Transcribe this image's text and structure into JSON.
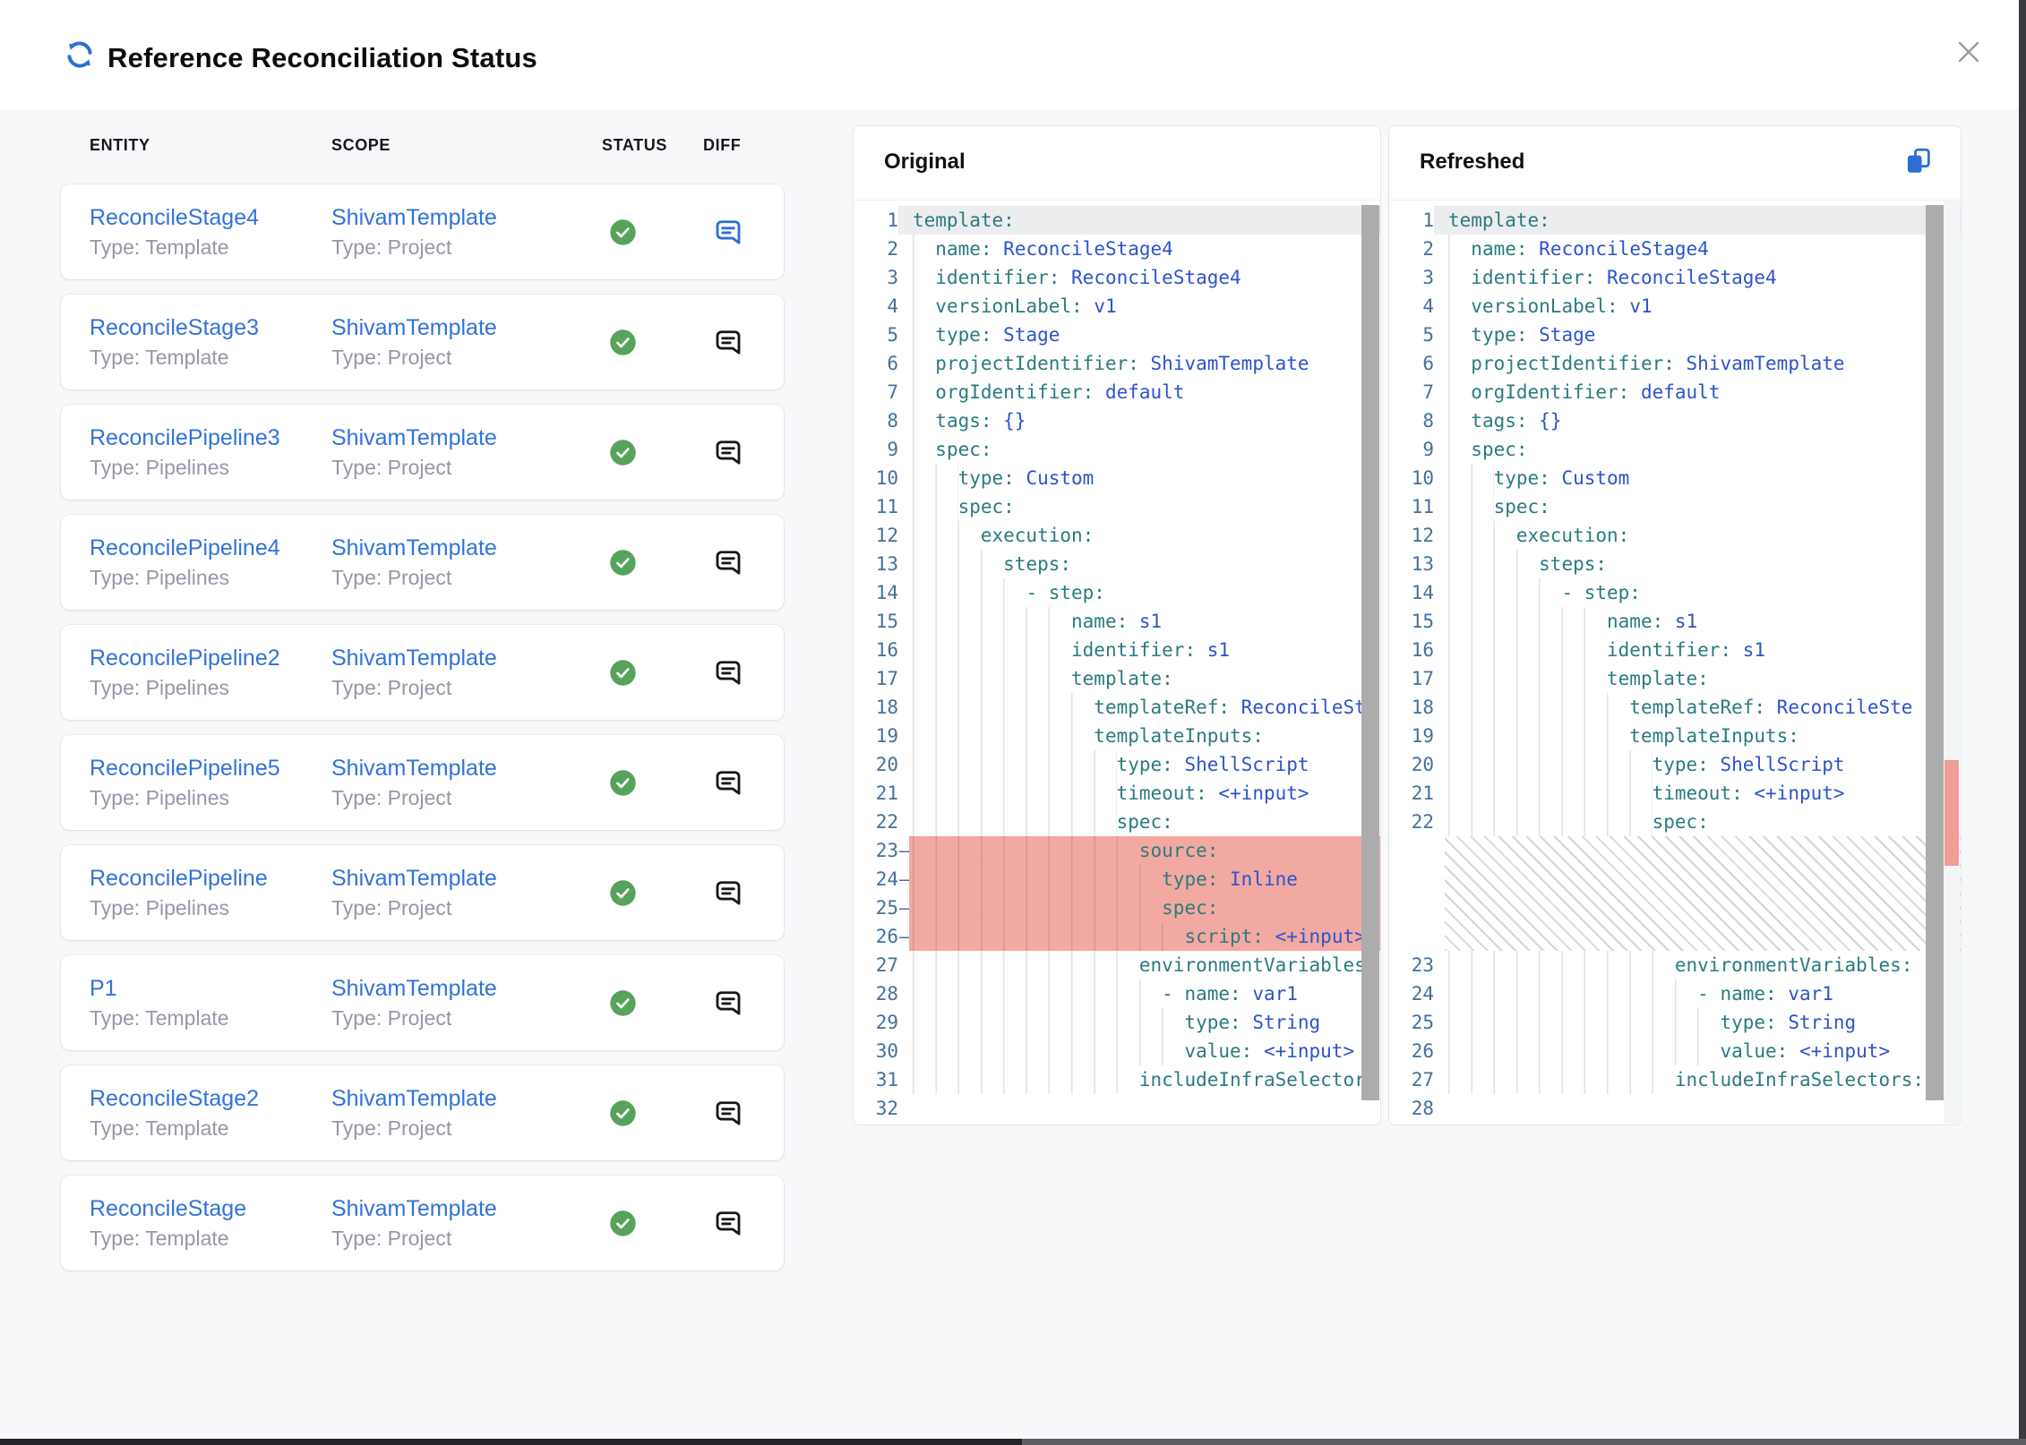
{
  "header": {
    "title": "Reference Reconciliation Status",
    "refresh_icon": "refresh-icon",
    "close_icon": "close-icon"
  },
  "colors": {
    "accent_blue": "#2B6FD4",
    "link_blue": "#3173D8",
    "success_green": "#56A35C",
    "key_teal": "#2A7B7E",
    "value_blue": "#2D53CB",
    "line_number_blue": "#44709D",
    "deleted_line_bg": "#F2A9A1",
    "ruler_marker": "#EF9E95"
  },
  "table": {
    "columns": [
      "ENTITY",
      "SCOPE",
      "STATUS",
      "DIFF"
    ],
    "rows": [
      {
        "entity": "ReconcileStage4",
        "entity_type": "Type: Template",
        "scope": "ShivamTemplate",
        "scope_type": "Type: Project",
        "status": "success",
        "diff_active": true
      },
      {
        "entity": "ReconcileStage3",
        "entity_type": "Type: Template",
        "scope": "ShivamTemplate",
        "scope_type": "Type: Project",
        "status": "success",
        "diff_active": false
      },
      {
        "entity": "ReconcilePipeline3",
        "entity_type": "Type: Pipelines",
        "scope": "ShivamTemplate",
        "scope_type": "Type: Project",
        "status": "success",
        "diff_active": false
      },
      {
        "entity": "ReconcilePipeline4",
        "entity_type": "Type: Pipelines",
        "scope": "ShivamTemplate",
        "scope_type": "Type: Project",
        "status": "success",
        "diff_active": false
      },
      {
        "entity": "ReconcilePipeline2",
        "entity_type": "Type: Pipelines",
        "scope": "ShivamTemplate",
        "scope_type": "Type: Project",
        "status": "success",
        "diff_active": false
      },
      {
        "entity": "ReconcilePipeline5",
        "entity_type": "Type: Pipelines",
        "scope": "ShivamTemplate",
        "scope_type": "Type: Project",
        "status": "success",
        "diff_active": false
      },
      {
        "entity": "ReconcilePipeline",
        "entity_type": "Type: Pipelines",
        "scope": "ShivamTemplate",
        "scope_type": "Type: Project",
        "status": "success",
        "diff_active": false
      },
      {
        "entity": "P1",
        "entity_type": "Type: Template",
        "scope": "ShivamTemplate",
        "scope_type": "Type: Project",
        "status": "success",
        "diff_active": false
      },
      {
        "entity": "ReconcileStage2",
        "entity_type": "Type: Template",
        "scope": "ShivamTemplate",
        "scope_type": "Type: Project",
        "status": "success",
        "diff_active": false
      },
      {
        "entity": "ReconcileStage",
        "entity_type": "Type: Template",
        "scope": "ShivamTemplate",
        "scope_type": "Type: Project",
        "status": "success",
        "diff_active": false
      }
    ]
  },
  "diff": {
    "deleted_marker": "–",
    "original": {
      "title": "Original",
      "lines": [
        {
          "n": 1,
          "indent": 0,
          "k": "template",
          "hl": true
        },
        {
          "n": 2,
          "indent": 2,
          "k": "name",
          "v": "ReconcileStage4"
        },
        {
          "n": 3,
          "indent": 2,
          "k": "identifier",
          "v": "ReconcileStage4"
        },
        {
          "n": 4,
          "indent": 2,
          "k": "versionLabel",
          "v": "v1"
        },
        {
          "n": 5,
          "indent": 2,
          "k": "type",
          "v": "Stage"
        },
        {
          "n": 6,
          "indent": 2,
          "k": "projectIdentifier",
          "v": "ShivamTemplate"
        },
        {
          "n": 7,
          "indent": 2,
          "k": "orgIdentifier",
          "v": "default"
        },
        {
          "n": 8,
          "indent": 2,
          "k": "tags",
          "v": "{}"
        },
        {
          "n": 9,
          "indent": 2,
          "k": "spec"
        },
        {
          "n": 10,
          "indent": 4,
          "k": "type",
          "v": "Custom"
        },
        {
          "n": 11,
          "indent": 4,
          "k": "spec"
        },
        {
          "n": 12,
          "indent": 6,
          "k": "execution"
        },
        {
          "n": 13,
          "indent": 8,
          "k": "steps"
        },
        {
          "n": 14,
          "indent": 10,
          "k": "- step"
        },
        {
          "n": 15,
          "indent": 14,
          "k": "name",
          "v": "s1"
        },
        {
          "n": 16,
          "indent": 14,
          "k": "identifier",
          "v": "s1"
        },
        {
          "n": 17,
          "indent": 14,
          "k": "template"
        },
        {
          "n": 18,
          "indent": 16,
          "k": "templateRef",
          "v": "ReconcileSte"
        },
        {
          "n": 19,
          "indent": 16,
          "k": "templateInputs"
        },
        {
          "n": 20,
          "indent": 18,
          "k": "type",
          "v": "ShellScript"
        },
        {
          "n": 21,
          "indent": 18,
          "k": "timeout",
          "v": "<+input>"
        },
        {
          "n": 22,
          "indent": 18,
          "k": "spec"
        },
        {
          "n": 23,
          "indent": 20,
          "k": "source",
          "deleted": true
        },
        {
          "n": 24,
          "indent": 22,
          "k": "type",
          "v": "Inline",
          "deleted": true
        },
        {
          "n": 25,
          "indent": 22,
          "k": "spec",
          "deleted": true
        },
        {
          "n": 26,
          "indent": 24,
          "k": "script",
          "v": "<+input>",
          "deleted": true
        },
        {
          "n": 27,
          "indent": 20,
          "k": "environmentVariables"
        },
        {
          "n": 28,
          "indent": 22,
          "k": "- name",
          "v": "var1"
        },
        {
          "n": 29,
          "indent": 24,
          "k": "type",
          "v": "String"
        },
        {
          "n": 30,
          "indent": 24,
          "k": "value",
          "v": "<+input>"
        },
        {
          "n": 31,
          "indent": 20,
          "k": "includeInfraSelectors"
        },
        {
          "n": 32,
          "indent": 0
        }
      ]
    },
    "refreshed": {
      "title": "Refreshed",
      "copy_icon": "copy-icon",
      "lines": [
        {
          "n": 1,
          "indent": 0,
          "k": "template",
          "hl": true
        },
        {
          "n": 2,
          "indent": 2,
          "k": "name",
          "v": "ReconcileStage4"
        },
        {
          "n": 3,
          "indent": 2,
          "k": "identifier",
          "v": "ReconcileStage4"
        },
        {
          "n": 4,
          "indent": 2,
          "k": "versionLabel",
          "v": "v1"
        },
        {
          "n": 5,
          "indent": 2,
          "k": "type",
          "v": "Stage"
        },
        {
          "n": 6,
          "indent": 2,
          "k": "projectIdentifier",
          "v": "ShivamTemplate"
        },
        {
          "n": 7,
          "indent": 2,
          "k": "orgIdentifier",
          "v": "default"
        },
        {
          "n": 8,
          "indent": 2,
          "k": "tags",
          "v": "{}"
        },
        {
          "n": 9,
          "indent": 2,
          "k": "spec"
        },
        {
          "n": 10,
          "indent": 4,
          "k": "type",
          "v": "Custom"
        },
        {
          "n": 11,
          "indent": 4,
          "k": "spec"
        },
        {
          "n": 12,
          "indent": 6,
          "k": "execution"
        },
        {
          "n": 13,
          "indent": 8,
          "k": "steps"
        },
        {
          "n": 14,
          "indent": 10,
          "k": "- step"
        },
        {
          "n": 15,
          "indent": 14,
          "k": "name",
          "v": "s1"
        },
        {
          "n": 16,
          "indent": 14,
          "k": "identifier",
          "v": "s1"
        },
        {
          "n": 17,
          "indent": 14,
          "k": "template"
        },
        {
          "n": 18,
          "indent": 16,
          "k": "templateRef",
          "v": "ReconcileSte"
        },
        {
          "n": 19,
          "indent": 16,
          "k": "templateInputs"
        },
        {
          "n": 20,
          "indent": 18,
          "k": "type",
          "v": "ShellScript"
        },
        {
          "n": 21,
          "indent": 18,
          "k": "timeout",
          "v": "<+input>"
        },
        {
          "n": 22,
          "indent": 18,
          "k": "spec"
        },
        {
          "hatch": true,
          "rows": 4
        },
        {
          "n": 23,
          "indent": 20,
          "k": "environmentVariables"
        },
        {
          "n": 24,
          "indent": 22,
          "k": "- name",
          "v": "var1"
        },
        {
          "n": 25,
          "indent": 24,
          "k": "type",
          "v": "String"
        },
        {
          "n": 26,
          "indent": 24,
          "k": "value",
          "v": "<+input>"
        },
        {
          "n": 27,
          "indent": 20,
          "k": "includeInfraSelectors"
        },
        {
          "n": 28,
          "indent": 0
        }
      ]
    }
  }
}
